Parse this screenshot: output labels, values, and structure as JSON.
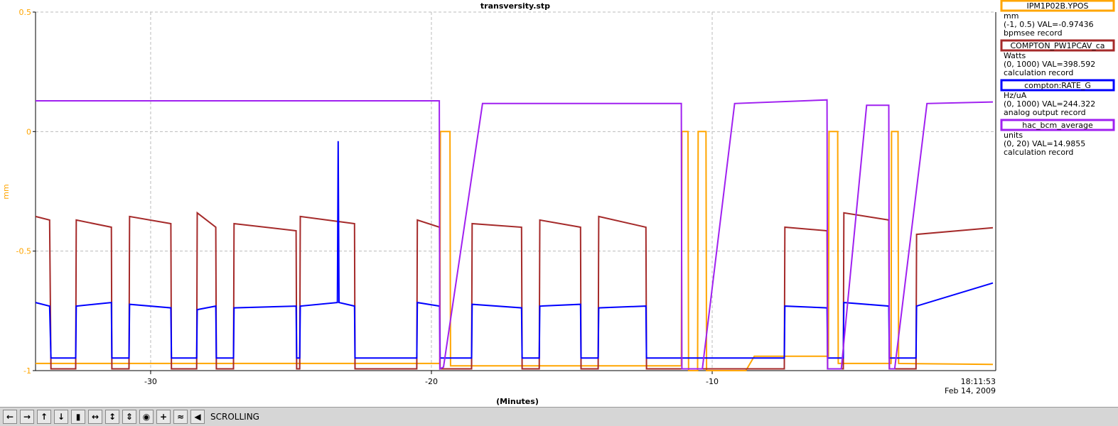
{
  "chart_data": {
    "type": "line",
    "title": "transversity.stp",
    "x_label": "(Minutes)",
    "y_label": "mm",
    "time_label": "18:11:53",
    "date_label": "Feb 14, 2009",
    "xlim": [
      -34.1,
      0.1
    ],
    "xticks": [
      -30,
      -20,
      -10
    ],
    "ylim": [
      -1,
      0.5
    ],
    "yticks": [
      -1,
      -0.5,
      0,
      0.5
    ],
    "grid": true,
    "series": [
      {
        "name": "IPM1P02B.YPOS",
        "color": "#ffa500",
        "units": "mm",
        "status": "(-1, 0.5) VAL=-0.97436",
        "record": "bpmsee record",
        "ylim": [
          -1,
          0.5
        ],
        "x": [
          -34.1,
          -19.7,
          -19.68,
          -19.34,
          -19.32,
          -11.1,
          -11.08,
          -10.86,
          -10.84,
          -10.52,
          -10.5,
          -10.22,
          -10.2,
          -9.5,
          -8.8,
          -8.5,
          -5.86,
          -5.84,
          -5.53,
          -5.51,
          -3.63,
          -3.61,
          -3.38,
          -3.36,
          0
        ],
        "values": [
          -0.97,
          -0.97,
          0,
          0,
          -0.98,
          -0.98,
          0,
          0,
          -1,
          -1,
          0,
          0,
          -1,
          -1,
          -1,
          -0.94,
          -0.94,
          0,
          0,
          -0.97,
          -0.97,
          0,
          0,
          -0.97,
          -0.974
        ]
      },
      {
        "name": "COMPTON_PW1PCAV_ca",
        "color": "#a52a2a",
        "units": "Watts",
        "status": "(0, 1000) VAL=398.592",
        "record": "calculation record",
        "ylim": [
          0,
          1000
        ],
        "x": [
          -34.1,
          -33.6,
          -33.55,
          -32.67,
          -32.65,
          -31.4,
          -31.38,
          -30.77,
          -30.75,
          -29.28,
          -29.26,
          -28.36,
          -28.34,
          -27.68,
          -27.66,
          -27.05,
          -27.03,
          -24.82,
          -24.8,
          -24.69,
          -24.67,
          -22.74,
          -22.72,
          -20.52,
          -20.5,
          -19.71,
          -19.69,
          -18.57,
          -18.55,
          -16.79,
          -16.77,
          -16.16,
          -16.14,
          -14.69,
          -14.67,
          -14.06,
          -14.04,
          -12.36,
          -12.34,
          -7.43,
          -7.41,
          -5.91,
          -5.89,
          -5.33,
          -5.31,
          -3.71,
          -3.69,
          -2.74,
          -2.72,
          0
        ],
        "values": [
          430,
          420,
          5,
          5,
          420,
          400,
          5,
          5,
          430,
          410,
          5,
          5,
          440,
          400,
          5,
          5,
          410,
          390,
          5,
          5,
          430,
          410,
          5,
          5,
          420,
          400,
          5,
          5,
          410,
          400,
          5,
          5,
          420,
          400,
          5,
          5,
          430,
          400,
          5,
          5,
          400,
          390,
          5,
          5,
          440,
          420,
          5,
          5,
          380,
          398.592
        ]
      },
      {
        "name": "compton:RATE_G",
        "color": "#0000ff",
        "units": "Hz/uA",
        "status": "(0, 1000) VAL=244.322",
        "record": "analog output record",
        "ylim": [
          0,
          1000
        ],
        "x": [
          -34.1,
          -33.6,
          -33.55,
          -32.67,
          -32.65,
          -31.4,
          -31.38,
          -30.77,
          -30.75,
          -29.28,
          -29.26,
          -28.36,
          -28.34,
          -27.68,
          -27.66,
          -27.05,
          -27.03,
          -24.82,
          -24.8,
          -24.69,
          -24.67,
          -23.35,
          -23.32,
          -23.29,
          -22.74,
          -22.72,
          -20.52,
          -20.5,
          -19.71,
          -19.69,
          -18.57,
          -18.55,
          -16.79,
          -16.77,
          -16.16,
          -16.14,
          -14.69,
          -14.67,
          -14.06,
          -14.04,
          -12.36,
          -12.34,
          -7.43,
          -7.41,
          -5.91,
          -5.89,
          -5.33,
          -5.31,
          -3.71,
          -3.69,
          -2.74,
          -2.72,
          0
        ],
        "values": [
          190,
          180,
          35,
          35,
          180,
          190,
          35,
          35,
          185,
          175,
          35,
          35,
          170,
          180,
          35,
          35,
          175,
          180,
          35,
          35,
          180,
          190,
          640,
          190,
          180,
          35,
          35,
          190,
          180,
          35,
          35,
          185,
          175,
          35,
          35,
          180,
          185,
          35,
          35,
          175,
          180,
          35,
          35,
          180,
          175,
          35,
          35,
          190,
          180,
          35,
          35,
          180,
          244.322
        ]
      },
      {
        "name": "hac_bcm_average",
        "color": "#a020f0",
        "units": "units",
        "status": "(0, 20) VAL=14.9855",
        "record": "calculation record",
        "ylim": [
          0,
          20
        ],
        "x": [
          -34.1,
          -19.72,
          -19.7,
          -19.57,
          -18.18,
          -11.1,
          -11.08,
          -10.35,
          -9.2,
          -5.91,
          -5.89,
          -5.4,
          -4.5,
          -3.71,
          -3.69,
          -3.5,
          -2.35,
          0
        ],
        "values": [
          15.05,
          15.05,
          0.1,
          0.2,
          14.9,
          14.9,
          0.1,
          0.1,
          14.9,
          15.1,
          0.1,
          0.1,
          14.8,
          14.8,
          0.1,
          0.1,
          14.9,
          14.9855
        ]
      }
    ]
  },
  "toolbar": {
    "status": "SCROLLING"
  }
}
